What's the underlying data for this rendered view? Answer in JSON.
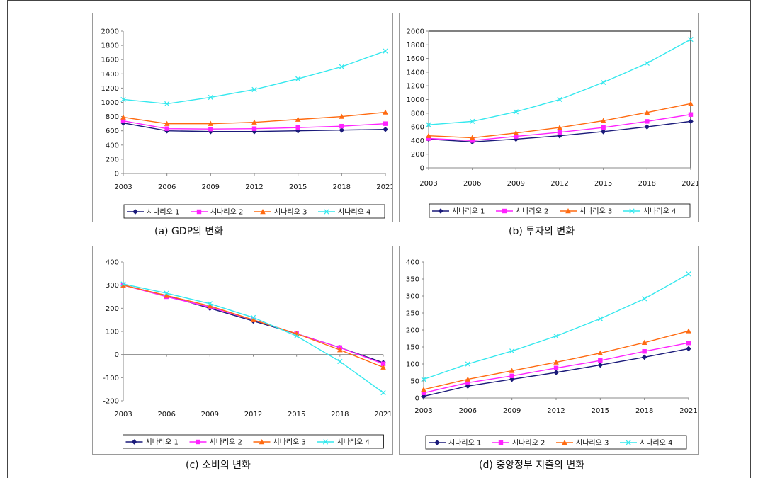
{
  "colors": {
    "series": [
      "#1a1a7a",
      "#ff22ff",
      "#ff6a10",
      "#35e8ee"
    ],
    "axis": "#888888",
    "plot_border": "#000000"
  },
  "markers": [
    "diamond",
    "square",
    "triangle",
    "x"
  ],
  "captions": {
    "a": "(a) GDP의 변화",
    "b": "(b) 투자의 변화",
    "c": "(c) 소비의 변화",
    "d": "(d) 중앙정부 지출의 변화"
  },
  "chart_data": [
    {
      "type": "line",
      "x": [
        "2003",
        "2006",
        "2009",
        "2012",
        "2015",
        "2018",
        "2021"
      ],
      "yticks": [
        0,
        200,
        400,
        600,
        800,
        1000,
        1200,
        1400,
        1600,
        1800,
        2000
      ],
      "ylim": [
        0,
        2000
      ],
      "grid": false,
      "legend": "bottom",
      "series": [
        {
          "name": "시나리오 1",
          "values": [
            710,
            600,
            590,
            590,
            600,
            610,
            620
          ]
        },
        {
          "name": "시나리오 2",
          "values": [
            740,
            630,
            625,
            630,
            645,
            665,
            700
          ]
        },
        {
          "name": "시나리오 3",
          "values": [
            790,
            700,
            700,
            720,
            760,
            800,
            860
          ]
        },
        {
          "name": "시나리오 4",
          "values": [
            1040,
            980,
            1070,
            1180,
            1330,
            1500,
            1720
          ]
        }
      ]
    },
    {
      "type": "line",
      "x": [
        "2003",
        "2006",
        "2009",
        "2012",
        "2015",
        "2018",
        "2021"
      ],
      "yticks": [
        0,
        200,
        400,
        600,
        800,
        1000,
        1200,
        1400,
        1600,
        1800,
        2000
      ],
      "ylim": [
        0,
        2000
      ],
      "grid": false,
      "legend": "bottom",
      "series": [
        {
          "name": "시나리오 1",
          "values": [
            420,
            380,
            420,
            470,
            530,
            600,
            680
          ]
        },
        {
          "name": "시나리오 2",
          "values": [
            430,
            400,
            460,
            520,
            590,
            680,
            780
          ]
        },
        {
          "name": "시나리오 3",
          "values": [
            470,
            440,
            510,
            590,
            690,
            810,
            940
          ]
        },
        {
          "name": "시나리오 4",
          "values": [
            630,
            680,
            820,
            1000,
            1250,
            1530,
            1880
          ]
        }
      ]
    },
    {
      "type": "line",
      "x": [
        "2003",
        "2006",
        "2009",
        "2012",
        "2015",
        "2018",
        "2021"
      ],
      "yticks": [
        -200,
        -100,
        0,
        100,
        200,
        300,
        400
      ],
      "ylim": [
        -200,
        400
      ],
      "grid": false,
      "zero_line": true,
      "legend": "bottom",
      "series": [
        {
          "name": "시나리오 1",
          "values": [
            300,
            255,
            200,
            145,
            90,
            30,
            -35
          ]
        },
        {
          "name": "시나리오 2",
          "values": [
            300,
            250,
            205,
            150,
            90,
            30,
            -40
          ]
        },
        {
          "name": "시나리오 3",
          "values": [
            300,
            255,
            210,
            150,
            90,
            20,
            -55
          ]
        },
        {
          "name": "시나리오 4",
          "values": [
            305,
            265,
            220,
            160,
            80,
            -30,
            -165
          ]
        }
      ]
    },
    {
      "type": "line",
      "x": [
        "2003",
        "2006",
        "2009",
        "2012",
        "2015",
        "2018",
        "2021"
      ],
      "yticks": [
        0,
        50,
        100,
        150,
        200,
        250,
        300,
        350,
        400
      ],
      "ylim": [
        0,
        400
      ],
      "grid": false,
      "legend": "bottom",
      "series": [
        {
          "name": "시나리오 1",
          "values": [
            5,
            35,
            55,
            75,
            97,
            120,
            145
          ]
        },
        {
          "name": "시나리오 2",
          "values": [
            15,
            45,
            65,
            88,
            110,
            137,
            162
          ]
        },
        {
          "name": "시나리오 3",
          "values": [
            25,
            55,
            80,
            105,
            132,
            163,
            197
          ]
        },
        {
          "name": "시나리오 4",
          "values": [
            55,
            100,
            138,
            182,
            233,
            292,
            365
          ]
        }
      ]
    }
  ]
}
